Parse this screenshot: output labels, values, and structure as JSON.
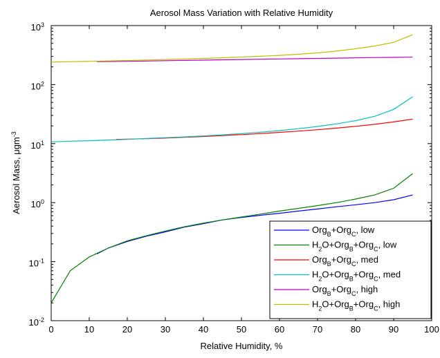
{
  "chart_data": {
    "type": "line",
    "title": "Aerosol Mass Variation with Relative Humidity",
    "xlabel": "Relative Humidity, %",
    "ylabel": {
      "base": "Aerosol Mass, ",
      "mu": "μ",
      "gm": "gm",
      "exp": "-3"
    },
    "x_scale": "linear",
    "y_scale": "log",
    "xlim": [
      0,
      100
    ],
    "ylim": [
      0.01,
      1000
    ],
    "xticks": [
      0,
      10,
      20,
      30,
      40,
      50,
      60,
      70,
      80,
      90,
      100
    ],
    "yticks": [
      {
        "value": 0.01,
        "base": "10",
        "exp": "-2"
      },
      {
        "value": 0.1,
        "base": "10",
        "exp": "-1"
      },
      {
        "value": 1,
        "base": "10",
        "exp": "0"
      },
      {
        "value": 10,
        "base": "10",
        "exp": "1"
      },
      {
        "value": 100,
        "base": "10",
        "exp": "2"
      },
      {
        "value": 1000,
        "base": "10",
        "exp": "3"
      }
    ],
    "grid": false,
    "legend_position": "bottom-right",
    "series": [
      {
        "name": "OrgB+OrgC, low",
        "legend_parts": [
          [
            "Org",
            ""
          ],
          [
            "B",
            "sub"
          ],
          [
            "+Org",
            ""
          ],
          [
            "C",
            "sub"
          ],
          [
            ", low",
            ""
          ]
        ],
        "color": "#0000ff",
        "x": [
          12,
          15,
          20,
          25,
          30,
          35,
          40,
          45,
          50,
          55,
          60,
          65,
          70,
          75,
          80,
          85,
          90,
          95
        ],
        "y": [
          0.135,
          0.17,
          0.22,
          0.27,
          0.32,
          0.385,
          0.44,
          0.51,
          0.56,
          0.61,
          0.66,
          0.72,
          0.78,
          0.85,
          0.92,
          1.0,
          1.12,
          1.35
        ]
      },
      {
        "name": "H2O+OrgB+OrgC, low",
        "legend_parts": [
          [
            "H",
            ""
          ],
          [
            "2",
            "sub"
          ],
          [
            "O+Org",
            ""
          ],
          [
            "B",
            "sub"
          ],
          [
            "+Org",
            ""
          ],
          [
            "C",
            "sub"
          ],
          [
            ", low",
            ""
          ]
        ],
        "color": "#008000",
        "x": [
          0,
          5,
          10,
          15,
          20,
          25,
          30,
          35,
          40,
          45,
          50,
          55,
          60,
          65,
          70,
          75,
          80,
          85,
          90,
          95
        ],
        "y": [
          0.02,
          0.07,
          0.12,
          0.17,
          0.225,
          0.275,
          0.33,
          0.39,
          0.45,
          0.51,
          0.57,
          0.64,
          0.72,
          0.8,
          0.89,
          1.0,
          1.15,
          1.35,
          1.75,
          3.1
        ]
      },
      {
        "name": "OrgB+OrgC, med",
        "legend_parts": [
          [
            "Org",
            ""
          ],
          [
            "B",
            "sub"
          ],
          [
            "+Org",
            ""
          ],
          [
            "C",
            "sub"
          ],
          [
            ", med",
            ""
          ]
        ],
        "color": "#ff0000",
        "x": [
          17,
          20,
          25,
          30,
          35,
          40,
          45,
          50,
          55,
          60,
          65,
          70,
          75,
          80,
          85,
          90,
          95
        ],
        "y": [
          11.8,
          11.9,
          12.1,
          12.4,
          12.8,
          13.2,
          13.7,
          14.2,
          14.8,
          15.5,
          16.3,
          17.2,
          18.3,
          19.6,
          21.2,
          23.3,
          26.0
        ]
      },
      {
        "name": "H2O+OrgB+OrgC, med",
        "legend_parts": [
          [
            "H",
            ""
          ],
          [
            "2",
            "sub"
          ],
          [
            "O+Org",
            ""
          ],
          [
            "B",
            "sub"
          ],
          [
            "+Org",
            ""
          ],
          [
            "C",
            "sub"
          ],
          [
            ", med",
            ""
          ]
        ],
        "color": "#00bfbf",
        "x": [
          0,
          5,
          10,
          15,
          20,
          25,
          30,
          35,
          40,
          45,
          50,
          55,
          60,
          65,
          70,
          75,
          80,
          85,
          90,
          95
        ],
        "y": [
          10.7,
          11.0,
          11.2,
          11.5,
          11.8,
          12.2,
          12.6,
          13.0,
          13.5,
          14.1,
          14.8,
          15.6,
          16.6,
          17.9,
          19.5,
          21.6,
          24.5,
          29.0,
          38.0,
          62.0
        ]
      },
      {
        "name": "OrgB+OrgC, high",
        "legend_parts": [
          [
            "Org",
            ""
          ],
          [
            "B",
            "sub"
          ],
          [
            "+Org",
            ""
          ],
          [
            "C",
            "sub"
          ],
          [
            ", high",
            ""
          ]
        ],
        "color": "#bf00bf",
        "x": [
          12,
          15,
          20,
          25,
          30,
          35,
          40,
          45,
          50,
          55,
          60,
          65,
          70,
          75,
          80,
          85,
          90,
          95
        ],
        "y": [
          245,
          246,
          248,
          251,
          254,
          257,
          260,
          263,
          266,
          269,
          272,
          275,
          278,
          281,
          284,
          287,
          289,
          292
        ]
      },
      {
        "name": "H2O+OrgB+OrgC, high",
        "legend_parts": [
          [
            "H",
            ""
          ],
          [
            "2",
            "sub"
          ],
          [
            "O+Org",
            ""
          ],
          [
            "B",
            "sub"
          ],
          [
            "+Org",
            ""
          ],
          [
            "C",
            "sub"
          ],
          [
            ", high",
            ""
          ]
        ],
        "color": "#bfbf00",
        "x": [
          0,
          5,
          10,
          15,
          20,
          25,
          30,
          35,
          40,
          45,
          50,
          55,
          60,
          65,
          70,
          75,
          80,
          85,
          90,
          95
        ],
        "y": [
          240,
          244,
          248,
          252,
          256,
          261,
          266,
          272,
          278,
          285,
          293,
          302,
          313,
          327,
          345,
          370,
          405,
          450,
          520,
          700
        ]
      }
    ]
  }
}
